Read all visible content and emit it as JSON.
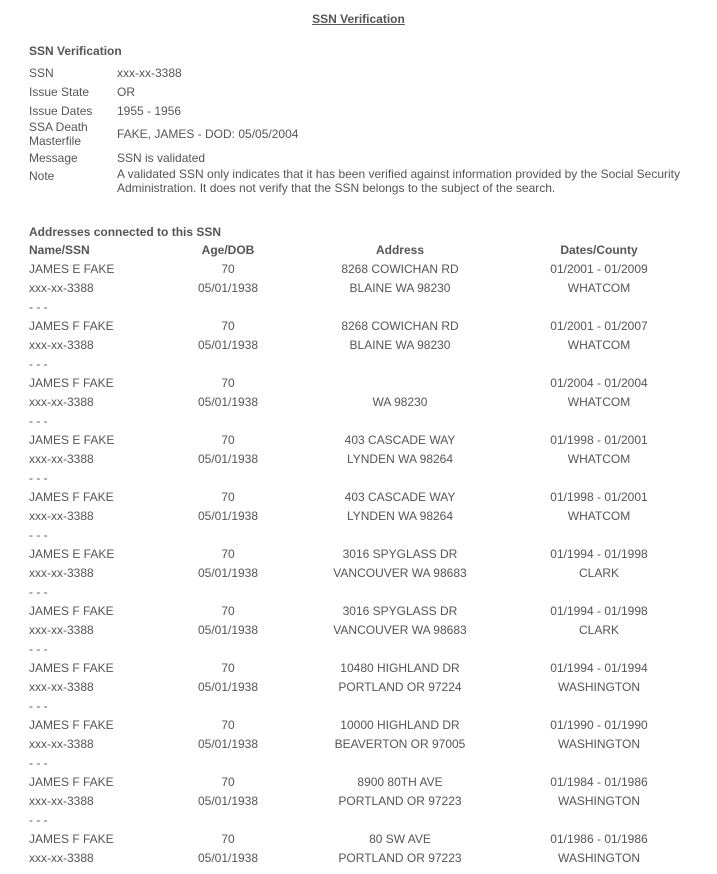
{
  "page_title": "SSN Verification",
  "verification": {
    "heading": "SSN Verification",
    "fields": [
      {
        "label": "SSN",
        "value": "xxx-xx-3388"
      },
      {
        "label": "Issue State",
        "value": "OR"
      },
      {
        "label": "Issue Dates",
        "value": "1955 - 1956"
      },
      {
        "label": "SSA Death Masterfile",
        "value": "FAKE, JAMES - DOD: 05/05/2004"
      },
      {
        "label": "Message",
        "value": "SSN is validated"
      },
      {
        "label": "Note",
        "value": "A validated SSN only indicates that it has been verified against information provided by the Social Security Administration. It does not verify that the SSN belongs to the subject of the search."
      }
    ]
  },
  "addresses": {
    "heading": "Addresses connected to this SSN",
    "columns": [
      "Name/SSN",
      "Age/DOB",
      "Address",
      "Dates/County"
    ],
    "separator": "- - -",
    "records": [
      {
        "name": "JAMES E FAKE",
        "ssn": "xxx-xx-3388",
        "age": "70",
        "dob": "05/01/1938",
        "street": "8268 COWICHAN RD",
        "city": "BLAINE WA 98230",
        "dates": "01/2001 - 01/2009",
        "county": "WHATCOM"
      },
      {
        "name": "JAMES F FAKE",
        "ssn": "xxx-xx-3388",
        "age": "70",
        "dob": "05/01/1938",
        "street": "8268 COWICHAN RD",
        "city": "BLAINE WA 98230",
        "dates": "01/2001 - 01/2007",
        "county": "WHATCOM"
      },
      {
        "name": "JAMES F FAKE",
        "ssn": "xxx-xx-3388",
        "age": "70",
        "dob": "05/01/1938",
        "street": "",
        "city": "WA 98230",
        "dates": "01/2004 - 01/2004",
        "county": "WHATCOM"
      },
      {
        "name": "JAMES E FAKE",
        "ssn": "xxx-xx-3388",
        "age": "70",
        "dob": "05/01/1938",
        "street": "403 CASCADE WAY",
        "city": "LYNDEN WA 98264",
        "dates": "01/1998 - 01/2001",
        "county": "WHATCOM"
      },
      {
        "name": "JAMES F FAKE",
        "ssn": "xxx-xx-3388",
        "age": "70",
        "dob": "05/01/1938",
        "street": "403 CASCADE WAY",
        "city": "LYNDEN WA 98264",
        "dates": "01/1998 - 01/2001",
        "county": "WHATCOM"
      },
      {
        "name": "JAMES E FAKE",
        "ssn": "xxx-xx-3388",
        "age": "70",
        "dob": "05/01/1938",
        "street": "3016 SPYGLASS DR",
        "city": "VANCOUVER WA 98683",
        "dates": "01/1994 - 01/1998",
        "county": "CLARK"
      },
      {
        "name": "JAMES F FAKE",
        "ssn": "xxx-xx-3388",
        "age": "70",
        "dob": "05/01/1938",
        "street": "3016 SPYGLASS DR",
        "city": "VANCOUVER WA 98683",
        "dates": "01/1994 - 01/1998",
        "county": "CLARK"
      },
      {
        "name": "JAMES F FAKE",
        "ssn": "xxx-xx-3388",
        "age": "70",
        "dob": "05/01/1938",
        "street": "10480 HIGHLAND DR",
        "city": "PORTLAND OR 97224",
        "dates": "01/1994 - 01/1994",
        "county": "WASHINGTON"
      },
      {
        "name": "JAMES F FAKE",
        "ssn": "xxx-xx-3388",
        "age": "70",
        "dob": "05/01/1938",
        "street": "10000 HIGHLAND DR",
        "city": "BEAVERTON OR 97005",
        "dates": "01/1990 - 01/1990",
        "county": "WASHINGTON"
      },
      {
        "name": "JAMES F FAKE",
        "ssn": "xxx-xx-3388",
        "age": "70",
        "dob": "05/01/1938",
        "street": "8900 80TH AVE",
        "city": "PORTLAND OR 97223",
        "dates": "01/1984 - 01/1986",
        "county": "WASHINGTON"
      },
      {
        "name": "JAMES F FAKE",
        "ssn": "xxx-xx-3388",
        "age": "70",
        "dob": "05/01/1938",
        "street": "80 SW AVE",
        "city": "PORTLAND OR 97223",
        "dates": "01/1986 - 01/1986",
        "county": "WASHINGTON"
      }
    ]
  }
}
